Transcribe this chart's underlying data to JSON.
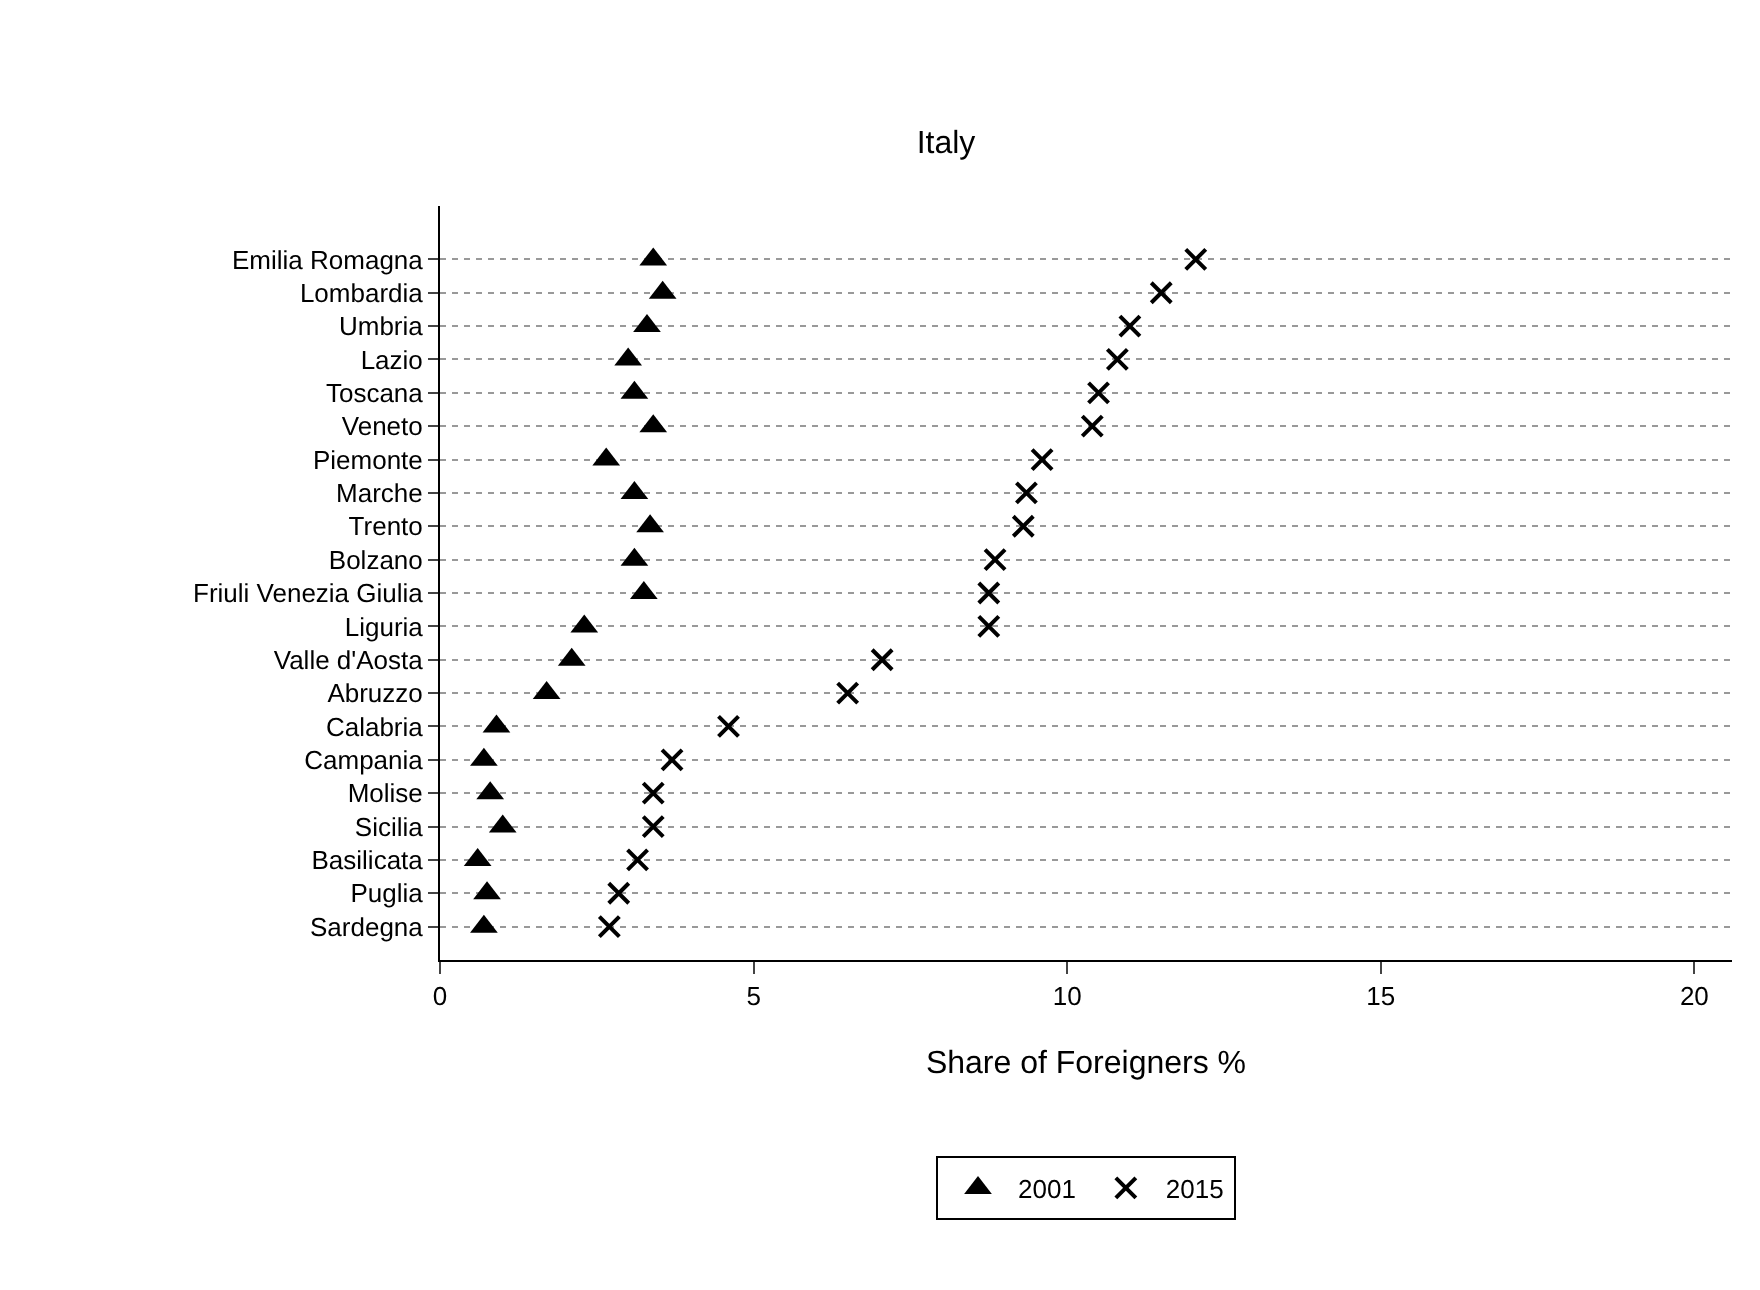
{
  "chart_data": {
    "type": "scatter",
    "title": "Italy",
    "xlabel": "Share of Foreigners %",
    "categories": [
      "Emilia Romagna",
      "Lombardia",
      "Umbria",
      "Lazio",
      "Toscana",
      "Veneto",
      "Piemonte",
      "Marche",
      "Trento",
      "Bolzano",
      "Friuli Venezia Giulia",
      "Liguria",
      "Valle d'Aosta",
      "Abruzzo",
      "Calabria",
      "Campania",
      "Molise",
      "Sicilia",
      "Basilicata",
      "Puglia",
      "Sardegna"
    ],
    "series": [
      {
        "name": "2001",
        "color": "#000000",
        "marker": "triangle",
        "values": [
          3.4,
          3.55,
          3.3,
          3.0,
          3.1,
          3.4,
          2.65,
          3.1,
          3.35,
          3.1,
          3.25,
          2.3,
          2.1,
          1.7,
          0.9,
          0.7,
          0.8,
          1.0,
          0.6,
          0.75,
          0.7
        ]
      },
      {
        "name": "2015",
        "color": "#000000",
        "marker": "cross",
        "values": [
          12.05,
          11.5,
          11.0,
          10.8,
          10.5,
          10.4,
          9.6,
          9.35,
          9.3,
          8.85,
          8.75,
          8.75,
          7.05,
          6.5,
          4.6,
          3.7,
          3.4,
          3.4,
          3.15,
          2.85,
          2.7
        ]
      }
    ],
    "orientation": "horizontal",
    "xlim": [
      0,
      20.6
    ],
    "xticks": [
      0,
      5,
      10,
      15,
      20
    ],
    "grid": "y",
    "legend": "bottom"
  }
}
